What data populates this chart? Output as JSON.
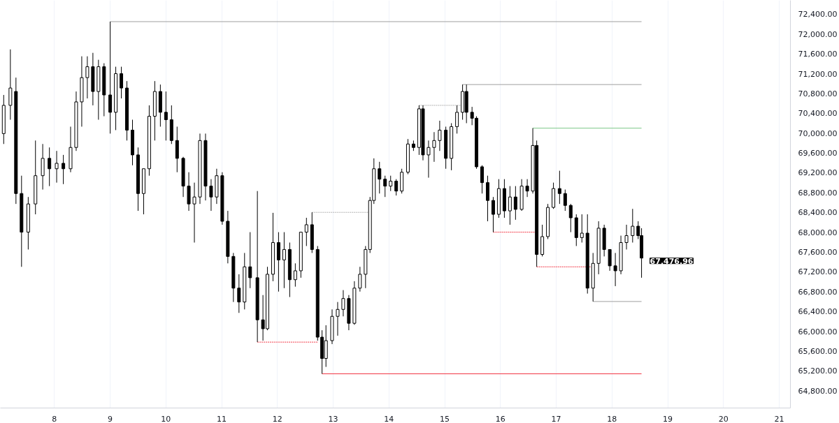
{
  "chart_data": {
    "type": "candlestick",
    "x": [
      7.09,
      7.21,
      7.31,
      7.41,
      7.53,
      7.66,
      7.79,
      7.91,
      8.04,
      8.16,
      8.29,
      8.39,
      8.49,
      8.59,
      8.69,
      8.79,
      8.89,
      9.0,
      9.1,
      9.2,
      9.3,
      9.4,
      9.5,
      9.6,
      9.7,
      9.8,
      9.9,
      10.0,
      10.1,
      10.2,
      10.31,
      10.41,
      10.51,
      10.61,
      10.71,
      10.81,
      10.91,
      11.01,
      11.11,
      11.21,
      11.31,
      11.41,
      11.51,
      11.64,
      11.74,
      11.82,
      11.92,
      12.02,
      12.12,
      12.22,
      12.32,
      12.42,
      12.52,
      12.62,
      12.72,
      12.8,
      12.87,
      12.98,
      13.08,
      13.18,
      13.28,
      13.38,
      13.48,
      13.58,
      13.66,
      13.73,
      13.83,
      13.93,
      14.03,
      14.13,
      14.23,
      14.34,
      14.44,
      14.54,
      14.61,
      14.71,
      14.81,
      14.91,
      15.02,
      15.12,
      15.22,
      15.32,
      15.39,
      15.49,
      15.57,
      15.67,
      15.77,
      15.87,
      15.97,
      16.07,
      16.17,
      16.27,
      16.38,
      16.48,
      16.58,
      16.65,
      16.75,
      16.85,
      16.95,
      17.06,
      17.16,
      17.26,
      17.36,
      17.46,
      17.56,
      17.66,
      17.76,
      17.86,
      17.96,
      18.06,
      18.16,
      18.26,
      18.37,
      18.47,
      18.53
    ],
    "ohlc": [
      [
        69990,
        70770,
        69780,
        70560
      ],
      [
        70560,
        71690,
        70270,
        70910
      ],
      [
        70840,
        71120,
        68570,
        68780
      ],
      [
        68780,
        69140,
        67300,
        68000
      ],
      [
        68000,
        68710,
        67650,
        68570
      ],
      [
        68570,
        69850,
        68360,
        69140
      ],
      [
        69140,
        69780,
        68860,
        69490
      ],
      [
        69490,
        69710,
        68930,
        69280
      ],
      [
        69280,
        69640,
        69000,
        69390
      ],
      [
        69390,
        69560,
        68970,
        69280
      ],
      [
        69280,
        70130,
        69210,
        69710
      ],
      [
        69710,
        70840,
        69640,
        70630
      ],
      [
        70630,
        71550,
        70130,
        71120
      ],
      [
        71120,
        71550,
        70700,
        71340
      ],
      [
        71340,
        71620,
        70560,
        70840
      ],
      [
        70840,
        71480,
        70270,
        71340
      ],
      [
        71340,
        71410,
        70340,
        70770
      ],
      [
        70770,
        72250,
        69990,
        70420
      ],
      [
        70420,
        71340,
        70060,
        71200
      ],
      [
        71200,
        71340,
        70700,
        70910
      ],
      [
        70910,
        71050,
        69850,
        70060
      ],
      [
        70060,
        70270,
        69350,
        69560
      ],
      [
        69560,
        69710,
        68430,
        68780
      ],
      [
        68780,
        69280,
        68360,
        69280
      ],
      [
        69280,
        70560,
        69140,
        70340
      ],
      [
        70340,
        71050,
        69850,
        70840
      ],
      [
        70840,
        70980,
        70130,
        70420
      ],
      [
        70420,
        70840,
        69850,
        70270
      ],
      [
        70270,
        70560,
        69780,
        69850
      ],
      [
        69850,
        70130,
        69210,
        69490
      ],
      [
        69490,
        69520,
        68710,
        68930
      ],
      [
        68930,
        69210,
        68430,
        68570
      ],
      [
        68570,
        69000,
        67790,
        68710
      ],
      [
        68710,
        69990,
        68570,
        69850
      ],
      [
        69850,
        69990,
        68640,
        68930
      ],
      [
        68930,
        69070,
        68430,
        68710
      ],
      [
        68710,
        69280,
        68570,
        69140
      ],
      [
        69140,
        69210,
        68150,
        68220
      ],
      [
        68220,
        68430,
        67370,
        67510
      ],
      [
        67510,
        67580,
        66590,
        66870
      ],
      [
        66870,
        67150,
        66370,
        66590
      ],
      [
        66590,
        67580,
        66440,
        67300
      ],
      [
        67300,
        68000,
        66870,
        67080
      ],
      [
        67080,
        68830,
        65780,
        66230
      ],
      [
        66230,
        66730,
        65810,
        66050
      ],
      [
        66050,
        67300,
        66020,
        67150
      ],
      [
        67150,
        68390,
        67010,
        67790
      ],
      [
        67790,
        68000,
        66800,
        67440
      ],
      [
        67440,
        68000,
        66870,
        67650
      ],
      [
        67650,
        67790,
        66690,
        67040
      ],
      [
        67040,
        67370,
        66900,
        67220
      ],
      [
        67220,
        68000,
        67080,
        68000
      ],
      [
        68000,
        68290,
        67720,
        68150
      ],
      [
        68150,
        68400,
        67580,
        67650
      ],
      [
        67650,
        67720,
        65810,
        65880
      ],
      [
        65880,
        66020,
        65140,
        65450
      ],
      [
        65450,
        66120,
        65280,
        65810
      ],
      [
        65810,
        66440,
        65740,
        66300
      ],
      [
        66300,
        66590,
        65910,
        66440
      ],
      [
        66440,
        66830,
        66300,
        66660
      ],
      [
        66660,
        66730,
        66020,
        66160
      ],
      [
        66160,
        67010,
        66130,
        66870
      ],
      [
        66870,
        67300,
        66800,
        67150
      ],
      [
        67150,
        67720,
        66870,
        67650
      ],
      [
        67650,
        68710,
        67580,
        68640
      ],
      [
        68640,
        69490,
        68570,
        69280
      ],
      [
        69280,
        69420,
        68780,
        69070
      ],
      [
        69070,
        69140,
        68710,
        68930
      ],
      [
        68930,
        69140,
        68830,
        69030
      ],
      [
        69030,
        69070,
        68740,
        68830
      ],
      [
        68830,
        69280,
        68780,
        69210
      ],
      [
        69210,
        69880,
        69170,
        69780
      ],
      [
        69780,
        69850,
        69640,
        69710
      ],
      [
        69710,
        70560,
        69560,
        70490
      ],
      [
        70490,
        70560,
        69450,
        69560
      ],
      [
        69560,
        69850,
        69100,
        69710
      ],
      [
        69710,
        70020,
        69420,
        69850
      ],
      [
        69850,
        70250,
        69640,
        70060
      ],
      [
        70060,
        70130,
        69280,
        69490
      ],
      [
        69490,
        70200,
        69250,
        70130
      ],
      [
        70130,
        70560,
        69990,
        70420
      ],
      [
        70420,
        70980,
        70270,
        70840
      ],
      [
        70840,
        70980,
        70200,
        70420
      ],
      [
        70420,
        70530,
        70160,
        70300
      ],
      [
        70300,
        70340,
        69280,
        69320
      ],
      [
        69320,
        69350,
        68780,
        69000
      ],
      [
        69000,
        69140,
        68220,
        68640
      ],
      [
        68640,
        68710,
        68000,
        68360
      ],
      [
        68360,
        69070,
        68290,
        68880
      ],
      [
        68880,
        69070,
        68290,
        68430
      ],
      [
        68430,
        68930,
        68150,
        68710
      ],
      [
        68710,
        68930,
        68250,
        68460
      ],
      [
        68460,
        69070,
        68430,
        68930
      ],
      [
        68930,
        69070,
        68710,
        68830
      ],
      [
        68830,
        70100,
        68780,
        69750
      ],
      [
        69750,
        69850,
        67300,
        67550
      ],
      [
        67550,
        68150,
        67510,
        67910
      ],
      [
        67910,
        68570,
        67860,
        68500
      ],
      [
        68500,
        69000,
        68470,
        68880
      ],
      [
        68880,
        69240,
        68570,
        68780
      ],
      [
        68780,
        68860,
        68430,
        68540
      ],
      [
        68540,
        68570,
        68000,
        68290
      ],
      [
        68290,
        68360,
        67720,
        67890
      ],
      [
        67890,
        68360,
        67790,
        67980
      ],
      [
        67980,
        68360,
        66760,
        66870
      ],
      [
        66870,
        67580,
        66600,
        67370
      ],
      [
        67370,
        68220,
        67150,
        68080
      ],
      [
        68080,
        68150,
        67510,
        67650
      ],
      [
        67650,
        67650,
        67220,
        67320
      ],
      [
        67320,
        67580,
        66910,
        67220
      ],
      [
        67220,
        67930,
        67150,
        67790
      ],
      [
        67790,
        68150,
        67650,
        67930
      ],
      [
        67930,
        68470,
        67790,
        68120
      ],
      [
        68120,
        68220,
        67860,
        67930
      ],
      [
        67930,
        68080,
        67080,
        67476.96
      ]
    ],
    "color": "#000000",
    "series": [
      {
        "type": "line",
        "x": [
          9.0,
          18.53
        ],
        "values": [
          72250,
          72250
        ],
        "color": "#9e9e9e",
        "line_style": "solid"
      },
      {
        "type": "line",
        "x": [
          15.32,
          18.53
        ],
        "values": [
          70980,
          70980
        ],
        "color": "#9e9e9e",
        "line_style": "solid"
      },
      {
        "type": "line",
        "x": [
          16.58,
          18.53
        ],
        "values": [
          70100,
          70100
        ],
        "color": "#7fc98a",
        "line_style": "solid"
      },
      {
        "type": "line",
        "x": [
          17.66,
          18.53
        ],
        "values": [
          66600,
          66600
        ],
        "color": "#9e9e9e",
        "line_style": "solid"
      },
      {
        "type": "line",
        "x": [
          12.8,
          18.53
        ],
        "values": [
          65140,
          65140
        ],
        "color": "#f23645",
        "line_style": "solid"
      },
      {
        "type": "line",
        "x": [
          14.54,
          15.32
        ],
        "values": [
          70560,
          70560
        ],
        "color": "#b0b0b0",
        "line_style": "dotted"
      },
      {
        "type": "line",
        "x": [
          12.62,
          13.66
        ],
        "values": [
          68400,
          68400
        ],
        "color": "#b0b0b0",
        "line_style": "dotted"
      },
      {
        "type": "line",
        "x": [
          15.87,
          16.65
        ],
        "values": [
          68000,
          68000
        ],
        "color": "#f23645",
        "line_style": "dotted"
      },
      {
        "type": "line",
        "x": [
          16.65,
          17.62
        ],
        "values": [
          67300,
          67300
        ],
        "color": "#f23645",
        "line_style": "dotted"
      },
      {
        "type": "line",
        "x": [
          11.64,
          12.72
        ],
        "values": [
          65780,
          65780
        ],
        "color": "#f23645",
        "line_style": "dotted"
      }
    ],
    "annotations": [
      {
        "text": "67,476.96",
        "x": 18.53,
        "y": 67476.96
      }
    ],
    "xlim": [
      7.03,
      21.2
    ],
    "xticks": [
      8,
      9,
      10,
      11,
      12,
      13,
      14,
      15,
      16,
      17,
      18,
      19,
      20,
      21
    ],
    "ylim": [
      64450,
      72680
    ],
    "yticks": [
      {
        "value": 64800,
        "label": "64,800.00"
      },
      {
        "value": 65200,
        "label": "65,200.00"
      },
      {
        "value": 65600,
        "label": "65,600.00"
      },
      {
        "value": 66000,
        "label": "66,000.00"
      },
      {
        "value": 66400,
        "label": "66,400.00"
      },
      {
        "value": 66800,
        "label": "66,800.00"
      },
      {
        "value": 67200,
        "label": "67,200.00"
      },
      {
        "value": 67600,
        "label": "67,600.00"
      },
      {
        "value": 68000,
        "label": "68,000.00"
      },
      {
        "value": 68400,
        "label": "68,400.00"
      },
      {
        "value": 68800,
        "label": "68,800.00"
      },
      {
        "value": 69200,
        "label": "69,200.00"
      },
      {
        "value": 69600,
        "label": "69,600.00"
      },
      {
        "value": 70000,
        "label": "70,000.00"
      },
      {
        "value": 70400,
        "label": "70,400.00"
      },
      {
        "value": 70800,
        "label": "70,800.00"
      },
      {
        "value": 71200,
        "label": "71,200.00"
      },
      {
        "value": 71600,
        "label": "71,600.00"
      },
      {
        "value": 72000,
        "label": "72,000.00"
      },
      {
        "value": 72400,
        "label": "72,400.00"
      }
    ],
    "grid": "x"
  }
}
